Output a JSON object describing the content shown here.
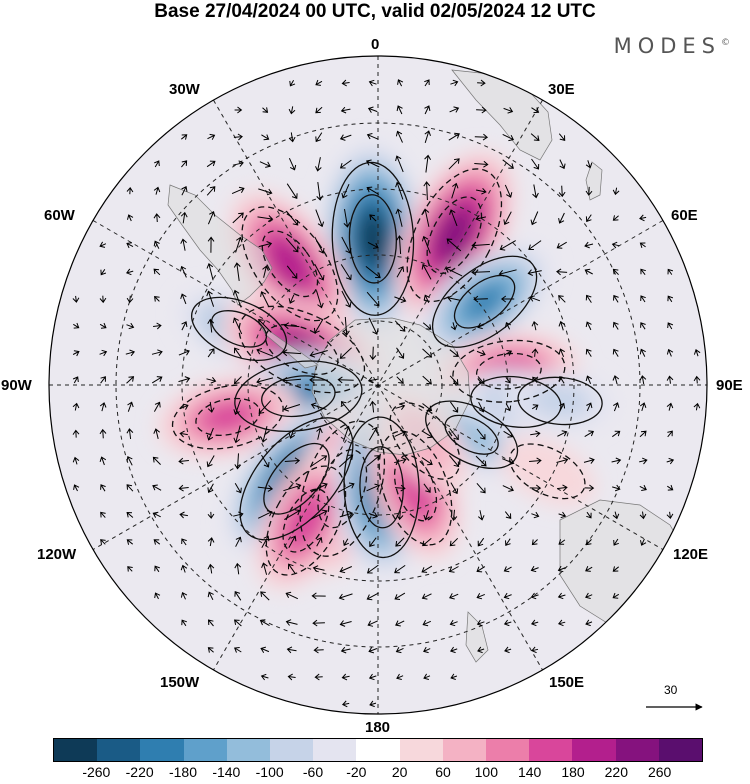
{
  "title": "Base 27/04/2024 00 UTC, valid 02/05/2024 12 UTC",
  "brand": "MODES",
  "brand_mark": "©",
  "longitude_labels": {
    "top": "0",
    "top_left": "30W",
    "top_right": "30E",
    "upper_left": "60W",
    "upper_right": "60E",
    "left": "90W",
    "right": "90E",
    "lower_left": "120W",
    "lower_right": "120E",
    "bottom_left": "150W",
    "bottom_right": "150E",
    "bottom": "180"
  },
  "wind_scale_label": "30",
  "colorbar": {
    "colors": [
      "#0e3a57",
      "#1a5b86",
      "#2f7eb0",
      "#5fa0cb",
      "#93bddb",
      "#c6d3e8",
      "#e4e4f0",
      "#ffffff",
      "#f7d8dc",
      "#f4b2c4",
      "#ec7eaa",
      "#d9469b",
      "#b31f8d",
      "#85127e",
      "#5a0e6e"
    ],
    "ticks": [
      "-260",
      "-220",
      "-180",
      "-140",
      "-100",
      "-60",
      "-20",
      "20",
      "60",
      "100",
      "140",
      "180",
      "220",
      "260"
    ]
  },
  "anomalies": [
    {
      "lat": -50,
      "lon": -2,
      "value": -280
    },
    {
      "lat": -44,
      "lon": 27,
      "value": 250
    },
    {
      "lat": -53,
      "lon": 52,
      "value": -180
    },
    {
      "lat": -49,
      "lon": -36,
      "value": 210
    },
    {
      "lat": -49,
      "lon": -68,
      "value": -110
    },
    {
      "lat": -67,
      "lon": -65,
      "value": 220
    },
    {
      "lat": -68,
      "lon": -98,
      "value": -200
    },
    {
      "lat": -48,
      "lon": -102,
      "value": 150
    },
    {
      "lat": -56,
      "lon": -139,
      "value": -260
    },
    {
      "lat": -60,
      "lon": -161,
      "value": 240
    },
    {
      "lat": -48,
      "lon": -152,
      "value": 170
    },
    {
      "lat": -62,
      "lon": 178,
      "value": -240
    },
    {
      "lat": -60,
      "lon": 160,
      "value": 170
    },
    {
      "lat": -54,
      "lon": 84,
      "value": 150
    },
    {
      "lat": -61,
      "lon": 118,
      "value": -110
    },
    {
      "lat": -70,
      "lon": 140,
      "value": 80
    },
    {
      "lat": -52,
      "lon": 97,
      "value": -80
    },
    {
      "lat": -38,
      "lon": 117,
      "value": 50
    },
    {
      "lat": -40,
      "lon": 95,
      "value": -60
    }
  ]
}
